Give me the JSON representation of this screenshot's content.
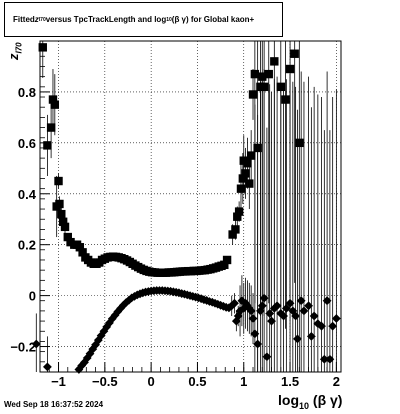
{
  "title": {
    "prefix": "Fitted ",
    "var": "z",
    "var_sub": "I70",
    "middle": " versus TpcTrackLength and log",
    "log_sub": "10",
    "suffix": "(β γ) for Global kaon+"
  },
  "timestamp": "Wed Sep 18 16:37:52 2024",
  "chart_data": {
    "type": "scatter",
    "title": "Fitted z_I70 versus TpcTrackLength and log10(β γ) for Global kaon+",
    "xlabel": "log10 (β γ)",
    "ylabel": "z_I70",
    "xlim": [
      -1.2,
      2.05
    ],
    "ylim": [
      -0.3,
      1.0
    ],
    "grid": true,
    "x_ticks": [
      -1,
      -0.5,
      0,
      0.5,
      1,
      1.5,
      2
    ],
    "x_tick_labels": [
      "−1",
      "−0.5",
      "0",
      "0.5",
      "1",
      "1.5",
      "2"
    ],
    "y_ticks": [
      -0.2,
      0,
      0.2,
      0.4,
      0.6,
      0.8
    ],
    "y_tick_labels": [
      "−0.2",
      "0",
      "0.2",
      "0.4",
      "0.6",
      "0.8"
    ],
    "series": [
      {
        "marker": "square",
        "points": [
          [
            -1.17,
            0.975
          ],
          [
            -1.12,
            0.59
          ],
          [
            -1.08,
            0.66
          ],
          [
            -1.06,
            0.77
          ],
          [
            -1.04,
            0.75
          ],
          [
            -1.02,
            0.35
          ],
          [
            -1.0,
            0.45
          ],
          [
            -0.99,
            0.36
          ],
          [
            -0.97,
            0.32
          ],
          [
            -0.95,
            0.29
          ],
          [
            -0.93,
            0.27
          ],
          [
            -0.9,
            0.23
          ],
          [
            -0.87,
            0.21
          ],
          [
            -0.83,
            0.2
          ],
          [
            -0.8,
            0.2
          ],
          [
            -0.77,
            0.19
          ],
          [
            -0.74,
            0.17
          ],
          [
            -0.71,
            0.15
          ],
          [
            -0.68,
            0.14
          ],
          [
            -0.65,
            0.13
          ],
          [
            -0.62,
            0.125
          ],
          [
            -0.59,
            0.125
          ],
          [
            -0.56,
            0.13
          ],
          [
            -0.53,
            0.14
          ],
          [
            -0.5,
            0.145
          ],
          [
            -0.47,
            0.15
          ],
          [
            -0.44,
            0.152
          ],
          [
            -0.41,
            0.153
          ],
          [
            -0.38,
            0.152
          ],
          [
            -0.35,
            0.15
          ],
          [
            -0.32,
            0.147
          ],
          [
            -0.29,
            0.143
          ],
          [
            -0.26,
            0.138
          ],
          [
            -0.23,
            0.132
          ],
          [
            -0.2,
            0.125
          ],
          [
            -0.17,
            0.118
          ],
          [
            -0.14,
            0.112
          ],
          [
            -0.11,
            0.106
          ],
          [
            -0.08,
            0.101
          ],
          [
            -0.05,
            0.097
          ],
          [
            -0.02,
            0.094
          ],
          [
            0.01,
            0.092
          ],
          [
            0.04,
            0.091
          ],
          [
            0.07,
            0.09
          ],
          [
            0.1,
            0.09
          ],
          [
            0.13,
            0.09
          ],
          [
            0.16,
            0.09
          ],
          [
            0.19,
            0.091
          ],
          [
            0.22,
            0.091
          ],
          [
            0.25,
            0.092
          ],
          [
            0.28,
            0.093
          ],
          [
            0.31,
            0.094
          ],
          [
            0.34,
            0.095
          ],
          [
            0.37,
            0.095
          ],
          [
            0.4,
            0.096
          ],
          [
            0.43,
            0.096
          ],
          [
            0.46,
            0.097
          ],
          [
            0.49,
            0.097
          ],
          [
            0.52,
            0.098
          ],
          [
            0.55,
            0.099
          ],
          [
            0.58,
            0.1
          ],
          [
            0.61,
            0.102
          ],
          [
            0.64,
            0.104
          ],
          [
            0.67,
            0.107
          ],
          [
            0.7,
            0.11
          ],
          [
            0.73,
            0.114
          ],
          [
            0.76,
            0.117
          ],
          [
            0.79,
            0.121
          ],
          [
            0.82,
            0.14
          ],
          [
            0.88,
            0.24
          ],
          [
            0.91,
            0.26
          ],
          [
            0.93,
            0.31
          ],
          [
            0.95,
            0.33
          ],
          [
            0.97,
            0.42
          ],
          [
            0.99,
            0.46
          ],
          [
            1.0,
            0.53
          ],
          [
            1.02,
            0.48
          ],
          [
            1.04,
            0.52
          ],
          [
            1.06,
            0.44
          ],
          [
            1.08,
            0.55
          ],
          [
            1.1,
            0.79
          ],
          [
            1.12,
            0.87
          ],
          [
            1.15,
            0.58
          ],
          [
            1.18,
            0.82
          ],
          [
            1.2,
            0.86
          ],
          [
            1.22,
            0.82
          ],
          [
            1.27,
            0.87
          ],
          [
            1.33,
            0.92
          ],
          [
            1.4,
            0.82
          ],
          [
            1.45,
            0.77
          ],
          [
            1.5,
            0.89
          ],
          [
            1.55,
            0.95
          ],
          [
            1.6,
            0.6
          ]
        ]
      },
      {
        "marker": "diamond",
        "points": [
          [
            -1.24,
            -0.19
          ],
          [
            -1.12,
            -0.28
          ],
          [
            -0.78,
            -0.29
          ],
          [
            -0.75,
            -0.275
          ],
          [
            -0.72,
            -0.262
          ],
          [
            -0.69,
            -0.245
          ],
          [
            -0.66,
            -0.228
          ],
          [
            -0.63,
            -0.21
          ],
          [
            -0.6,
            -0.193
          ],
          [
            -0.57,
            -0.175
          ],
          [
            -0.54,
            -0.157
          ],
          [
            -0.51,
            -0.14
          ],
          [
            -0.48,
            -0.123
          ],
          [
            -0.45,
            -0.107
          ],
          [
            -0.42,
            -0.091
          ],
          [
            -0.39,
            -0.077
          ],
          [
            -0.36,
            -0.063
          ],
          [
            -0.33,
            -0.05
          ],
          [
            -0.3,
            -0.038
          ],
          [
            -0.27,
            -0.027
          ],
          [
            -0.24,
            -0.018
          ],
          [
            -0.21,
            -0.009
          ],
          [
            -0.18,
            -0.003
          ],
          [
            -0.15,
            0.003
          ],
          [
            -0.12,
            0.007
          ],
          [
            -0.09,
            0.011
          ],
          [
            -0.06,
            0.014
          ],
          [
            -0.03,
            0.016
          ],
          [
            0.0,
            0.018
          ],
          [
            0.03,
            0.019
          ],
          [
            0.06,
            0.02
          ],
          [
            0.09,
            0.02
          ],
          [
            0.12,
            0.02
          ],
          [
            0.15,
            0.019
          ],
          [
            0.18,
            0.018
          ],
          [
            0.21,
            0.017
          ],
          [
            0.24,
            0.015
          ],
          [
            0.27,
            0.013
          ],
          [
            0.3,
            0.011
          ],
          [
            0.33,
            0.008
          ],
          [
            0.36,
            0.006
          ],
          [
            0.39,
            0.003
          ],
          [
            0.42,
            0.0
          ],
          [
            0.45,
            -0.003
          ],
          [
            0.48,
            -0.006
          ],
          [
            0.51,
            -0.009
          ],
          [
            0.54,
            -0.012
          ],
          [
            0.57,
            -0.016
          ],
          [
            0.6,
            -0.019
          ],
          [
            0.63,
            -0.023
          ],
          [
            0.66,
            -0.026
          ],
          [
            0.69,
            -0.03
          ],
          [
            0.72,
            -0.034
          ],
          [
            0.75,
            -0.038
          ],
          [
            0.78,
            -0.042
          ],
          [
            0.81,
            -0.046
          ],
          [
            0.84,
            -0.048
          ],
          [
            0.87,
            -0.04
          ],
          [
            0.9,
            -0.03
          ],
          [
            0.92,
            -0.1
          ],
          [
            0.94,
            -0.08
          ],
          [
            0.96,
            -0.06
          ],
          [
            0.98,
            -0.02
          ],
          [
            1.0,
            -0.05
          ],
          [
            1.02,
            -0.03
          ],
          [
            1.04,
            -0.04
          ],
          [
            1.06,
            -0.05
          ],
          [
            1.08,
            -0.06
          ],
          [
            1.1,
            -0.09
          ],
          [
            1.12,
            -0.15
          ],
          [
            1.15,
            -0.19
          ],
          [
            1.18,
            -0.06
          ],
          [
            1.2,
            -0.04
          ],
          [
            1.22,
            -0.01
          ],
          [
            1.25,
            -0.24
          ],
          [
            1.28,
            -0.07
          ],
          [
            1.3,
            -0.1
          ],
          [
            1.33,
            -0.05
          ],
          [
            1.36,
            -0.04
          ],
          [
            1.4,
            -0.07
          ],
          [
            1.43,
            -0.08
          ],
          [
            1.46,
            -0.05
          ],
          [
            1.5,
            -0.03
          ],
          [
            1.53,
            -0.06
          ],
          [
            1.56,
            -0.08
          ],
          [
            1.58,
            -0.17
          ],
          [
            1.62,
            -0.02
          ],
          [
            1.65,
            -0.06
          ],
          [
            1.7,
            -0.04
          ],
          [
            1.73,
            -0.16
          ],
          [
            1.76,
            -0.08
          ],
          [
            1.8,
            -0.11
          ],
          [
            1.84,
            -0.12
          ],
          [
            1.87,
            -0.25
          ],
          [
            1.9,
            -0.02
          ],
          [
            1.93,
            -0.25
          ],
          [
            1.96,
            -0.12
          ],
          [
            2.0,
            -0.09
          ]
        ]
      }
    ]
  }
}
